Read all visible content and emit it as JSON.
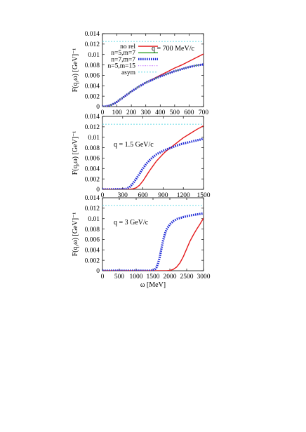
{
  "chart_data": [
    {
      "type": "line",
      "annotation": "q = 700 MeV/c",
      "xlabel": "",
      "ylabel": "F(q,ω) [GeV]⁻¹",
      "xlim": [
        0,
        700
      ],
      "ylim": [
        0,
        0.014
      ],
      "xticks": [
        0,
        100,
        200,
        300,
        400,
        500,
        600,
        700
      ],
      "yticks": [
        0,
        0.002,
        0.004,
        0.006,
        0.008,
        0.01,
        0.012,
        0.014
      ],
      "ytick_labels": [
        "0",
        "0.002",
        "0.004",
        "0.006",
        "0.008",
        "0.01",
        "0.012",
        "0.014"
      ],
      "legend": [
        "no rel",
        "n=5,m=7",
        "n=7,m=7",
        "n=5,m=15",
        "asym"
      ],
      "series": [
        {
          "name": "no rel",
          "color": "#e41a1c",
          "style": "solid",
          "x": [
            0,
            25,
            50,
            75,
            100,
            125,
            150,
            175,
            200,
            250,
            300,
            350,
            400,
            450,
            500,
            550,
            600,
            650,
            700
          ],
          "y": [
            0,
            5e-05,
            0.00022,
            0.0005,
            0.0009,
            0.0014,
            0.0019,
            0.0024,
            0.0029,
            0.0038,
            0.0046,
            0.0053,
            0.006,
            0.0067,
            0.0074,
            0.008,
            0.0087,
            0.0094,
            0.0101
          ]
        },
        {
          "name": "n=5,m=7",
          "color": "#33a02c",
          "style": "solid",
          "x": [
            0,
            25,
            50,
            75,
            100,
            125,
            150,
            175,
            200,
            250,
            300,
            350,
            400,
            450,
            500,
            550,
            600,
            650,
            700
          ],
          "y": [
            0,
            5e-05,
            0.00022,
            0.0005,
            0.0009,
            0.0014,
            0.0019,
            0.0024,
            0.0029,
            0.0038,
            0.0046,
            0.0052,
            0.0058,
            0.0063,
            0.0068,
            0.0072,
            0.0076,
            0.0079,
            0.0081
          ]
        },
        {
          "name": "n=7,m=7",
          "color": "#1f2bd6",
          "style": "thick-dotted",
          "x": [
            0,
            25,
            50,
            75,
            100,
            125,
            150,
            175,
            200,
            250,
            300,
            350,
            400,
            450,
            500,
            550,
            600,
            650,
            700
          ],
          "y": [
            0,
            5e-05,
            0.00022,
            0.0005,
            0.0009,
            0.0014,
            0.0019,
            0.0024,
            0.0029,
            0.0038,
            0.0046,
            0.0052,
            0.0058,
            0.0063,
            0.0068,
            0.0072,
            0.0076,
            0.0079,
            0.0081
          ]
        },
        {
          "name": "n=5,m=15",
          "color": "#c77dff",
          "style": "dotted",
          "x": [
            0,
            25,
            50,
            75,
            100,
            125,
            150,
            175,
            200,
            250,
            300,
            350,
            400,
            450,
            500,
            550,
            600,
            650,
            700
          ],
          "y": [
            0,
            5e-05,
            0.00022,
            0.0005,
            0.0009,
            0.0014,
            0.0019,
            0.0024,
            0.0029,
            0.0038,
            0.0046,
            0.0052,
            0.0058,
            0.0063,
            0.0068,
            0.0072,
            0.0076,
            0.0079,
            0.0081
          ]
        },
        {
          "name": "asym",
          "color": "#40d0e0",
          "style": "dashed",
          "x": [
            0,
            700
          ],
          "y": [
            0.0125,
            0.0125
          ]
        }
      ]
    },
    {
      "type": "line",
      "annotation": "q = 1.5 GeV/c",
      "xlabel": "",
      "ylabel": "F(q,ω) [GeV]⁻¹",
      "xlim": [
        0,
        1500
      ],
      "ylim": [
        0,
        0.014
      ],
      "xticks": [
        0,
        300,
        600,
        900,
        1200,
        1500
      ],
      "yticks": [
        0,
        0.002,
        0.004,
        0.006,
        0.008,
        0.01,
        0.012,
        0.014
      ],
      "ytick_labels": [
        "0",
        "0.002",
        "0.004",
        "0.006",
        "0.008",
        "0.01",
        "0.012",
        "0.014"
      ],
      "series": [
        {
          "name": "no rel",
          "color": "#e41a1c",
          "style": "solid",
          "x": [
            0,
            300,
            400,
            450,
            500,
            550,
            600,
            650,
            700,
            750,
            800,
            850,
            900,
            950,
            1000,
            1100,
            1200,
            1300,
            1400,
            1500
          ],
          "y": [
            0,
            0,
            2e-05,
            0.0001,
            0.0003,
            0.0008,
            0.0016,
            0.0026,
            0.0036,
            0.0045,
            0.0054,
            0.0061,
            0.0068,
            0.0074,
            0.0079,
            0.0089,
            0.0099,
            0.0107,
            0.0115,
            0.0122
          ]
        },
        {
          "name": "n=7,m=7",
          "color": "#1f2bd6",
          "style": "thick-dotted",
          "x": [
            0,
            300,
            350,
            400,
            450,
            500,
            550,
            600,
            650,
            700,
            750,
            800,
            900,
            1000,
            1100,
            1200,
            1300,
            1400,
            1500
          ],
          "y": [
            0,
            2e-05,
            0.0001,
            0.0004,
            0.0011,
            0.002,
            0.003,
            0.004,
            0.0049,
            0.0056,
            0.0062,
            0.0067,
            0.0074,
            0.0079,
            0.0084,
            0.0088,
            0.0091,
            0.0094,
            0.0097
          ]
        },
        {
          "name": "asym",
          "color": "#40d0e0",
          "style": "dashed",
          "x": [
            0,
            1500
          ],
          "y": [
            0.0125,
            0.0125
          ]
        }
      ]
    },
    {
      "type": "line",
      "annotation": "q = 3 GeV/c",
      "xlabel": "ω [MeV]",
      "ylabel": "F(q,ω) [GeV]⁻¹",
      "xlim": [
        0,
        3000
      ],
      "ylim": [
        0,
        0.014
      ],
      "xticks": [
        0,
        500,
        1000,
        1500,
        2000,
        2500,
        3000
      ],
      "yticks": [
        0,
        0.002,
        0.004,
        0.006,
        0.008,
        0.01,
        0.012,
        0.014
      ],
      "ytick_labels": [
        "0",
        "0.002",
        "0.004",
        "0.006",
        "0.008",
        "0.01",
        "0.012",
        "0.014"
      ],
      "series": [
        {
          "name": "no rel",
          "color": "#e41a1c",
          "style": "solid",
          "x": [
            0,
            1900,
            2000,
            2100,
            2200,
            2300,
            2400,
            2500,
            2600,
            2700,
            2800,
            2900,
            3000
          ],
          "y": [
            0,
            0,
            5e-05,
            0.00025,
            0.0007,
            0.0015,
            0.0027,
            0.0042,
            0.0057,
            0.0069,
            0.008,
            0.009,
            0.0101
          ]
        },
        {
          "name": "n=7,m=7",
          "color": "#1f2bd6",
          "style": "thick-dotted",
          "x": [
            0,
            1400,
            1500,
            1550,
            1600,
            1650,
            1700,
            1750,
            1800,
            1850,
            1900,
            2000,
            2100,
            2200,
            2400,
            2600,
            2800,
            3000
          ],
          "y": [
            0,
            0,
            5e-05,
            0.0002,
            0.0006,
            0.0014,
            0.0026,
            0.0042,
            0.0058,
            0.007,
            0.0079,
            0.0089,
            0.0095,
            0.0099,
            0.0103,
            0.0106,
            0.0108,
            0.011
          ]
        },
        {
          "name": "asym",
          "color": "#40d0e0",
          "style": "dashed",
          "x": [
            0,
            3000
          ],
          "y": [
            0.0125,
            0.0125
          ]
        }
      ]
    }
  ]
}
